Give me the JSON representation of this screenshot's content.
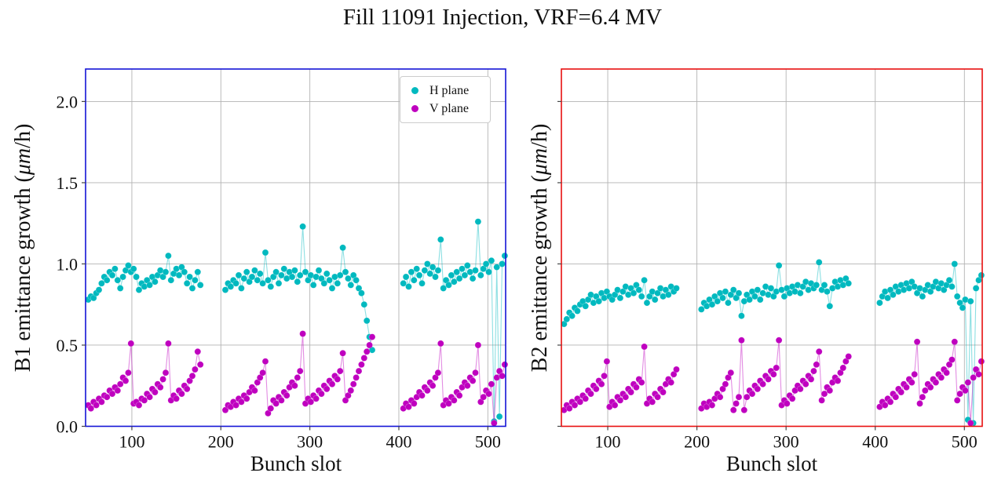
{
  "title": "Fill 11091 Injection, VRF=6.4 MV",
  "colors": {
    "h_plane": "#00b9bf",
    "v_plane": "#bf00bf",
    "b1_frame": "#1414d6",
    "b2_frame": "#e80f0f",
    "grid": "#b3b3b3",
    "tick": "#444444"
  },
  "legend": {
    "position": "upper right",
    "items": [
      {
        "label": "H plane",
        "color": "#00b9bf"
      },
      {
        "label": "V plane",
        "color": "#bf00bf"
      }
    ]
  },
  "chart_data": [
    {
      "type": "scatter",
      "plot_id": "b1",
      "ylabel_pre": "B1 emittance growth (",
      "ylabel_mu": "μm",
      "ylabel_post": "/h)",
      "xlabel": "Bunch slot",
      "xlim": [
        48,
        520
      ],
      "ylim": [
        0,
        2.2
      ],
      "grid": true,
      "frame_color": "#1414d6",
      "xticks": [
        100,
        200,
        300,
        400,
        500
      ],
      "xtick_labels": [
        "100",
        "200",
        "300",
        "400",
        "500"
      ],
      "yticks": [
        0.0,
        0.5,
        1.0,
        1.5,
        2.0
      ],
      "ytick_labels": [
        "0.0",
        "0.5",
        "1.0",
        "1.5",
        "2.0"
      ],
      "show_ytick_labels": true,
      "series": [
        {
          "name": "H plane",
          "color": "#00b9bf",
          "trains": [
            {
              "x0": 51,
              "dx": 3,
              "y": [
                0.78,
                0.8,
                0.79,
                0.82,
                0.84,
                0.88,
                0.92,
                0.9,
                0.95,
                0.93,
                0.97,
                0.9,
                0.85,
                0.92,
                0.96,
                0.99,
                0.95,
                0.97,
                0.92,
                0.84,
                0.88,
                0.86,
                0.9,
                0.87,
                0.92,
                0.89,
                0.93,
                0.96,
                0.92,
                0.95,
                1.05,
                0.9,
                0.94,
                0.97,
                0.93,
                0.98,
                0.95,
                0.88,
                0.92,
                0.85,
                0.9,
                0.95,
                0.87
              ]
            },
            {
              "x0": 205,
              "dx": 3,
              "y": [
                0.84,
                0.88,
                0.86,
                0.9,
                0.88,
                0.93,
                0.85,
                0.91,
                0.95,
                0.89,
                0.92,
                0.96,
                0.9,
                0.94,
                0.88,
                1.07,
                0.9,
                0.86,
                0.92,
                0.95,
                0.88,
                0.93,
                0.97,
                0.91,
                0.95,
                0.92,
                0.96,
                0.89,
                0.93,
                1.23,
                0.95,
                0.9,
                0.93,
                0.87,
                0.92,
                0.96,
                0.91,
                0.88,
                0.94,
                0.9,
                0.85,
                0.92,
                0.88,
                0.93,
                1.1,
                0.95,
                0.91,
                0.87,
                0.93,
                0.9,
                0.85,
                0.82,
                0.75,
                0.65,
                0.55,
                0.47
              ]
            },
            {
              "x0": 405,
              "dx": 3,
              "y": [
                0.88,
                0.92,
                0.86,
                0.95,
                0.9,
                0.97,
                0.93,
                0.88,
                0.96,
                1.0,
                0.94,
                0.98,
                0.92,
                0.96,
                1.15,
                0.85,
                0.9,
                0.87,
                0.93,
                0.89,
                0.95,
                0.91,
                0.97,
                0.93,
                0.99,
                0.95,
                0.91,
                0.96,
                1.26,
                0.93,
                0.97,
                1.0,
                0.95,
                1.02,
                0.03,
                0.98,
                0.06,
                1.0,
                1.05
              ]
            }
          ]
        },
        {
          "name": "V plane",
          "color": "#bf00bf",
          "trains": [
            {
              "x0": 51,
              "dx": 3,
              "y": [
                0.13,
                0.11,
                0.15,
                0.13,
                0.17,
                0.15,
                0.19,
                0.18,
                0.22,
                0.2,
                0.24,
                0.22,
                0.26,
                0.3,
                0.28,
                0.33,
                0.51,
                0.14,
                0.15,
                0.13,
                0.17,
                0.16,
                0.2,
                0.18,
                0.23,
                0.21,
                0.26,
                0.24,
                0.29,
                0.33,
                0.51,
                0.16,
                0.19,
                0.17,
                0.22,
                0.2,
                0.25,
                0.23,
                0.28,
                0.31,
                0.35,
                0.46,
                0.38
              ]
            },
            {
              "x0": 205,
              "dx": 3,
              "y": [
                0.1,
                0.13,
                0.12,
                0.15,
                0.13,
                0.17,
                0.15,
                0.19,
                0.17,
                0.21,
                0.24,
                0.22,
                0.27,
                0.3,
                0.33,
                0.4,
                0.08,
                0.11,
                0.16,
                0.14,
                0.18,
                0.16,
                0.21,
                0.19,
                0.24,
                0.27,
                0.25,
                0.3,
                0.34,
                0.57,
                0.14,
                0.17,
                0.15,
                0.19,
                0.17,
                0.22,
                0.2,
                0.25,
                0.23,
                0.28,
                0.26,
                0.31,
                0.29,
                0.34,
                0.45,
                0.16,
                0.19,
                0.22,
                0.26,
                0.3,
                0.34,
                0.38,
                0.42,
                0.46,
                0.5,
                0.55
              ]
            },
            {
              "x0": 405,
              "dx": 3,
              "y": [
                0.11,
                0.14,
                0.12,
                0.16,
                0.14,
                0.18,
                0.21,
                0.19,
                0.24,
                0.22,
                0.27,
                0.25,
                0.3,
                0.33,
                0.51,
                0.13,
                0.16,
                0.14,
                0.18,
                0.16,
                0.21,
                0.19,
                0.24,
                0.27,
                0.25,
                0.3,
                0.28,
                0.33,
                0.5,
                0.15,
                0.18,
                0.22,
                0.2,
                0.26,
                0.02,
                0.3,
                0.34,
                0.31,
                0.38
              ]
            }
          ]
        }
      ]
    },
    {
      "type": "scatter",
      "plot_id": "b2",
      "ylabel_pre": "B2 emittance growth (",
      "ylabel_mu": "μm",
      "ylabel_post": "/h)",
      "xlabel": "Bunch slot",
      "xlim": [
        48,
        520
      ],
      "ylim": [
        0,
        2.2
      ],
      "grid": true,
      "frame_color": "#e80f0f",
      "xticks": [
        100,
        200,
        300,
        400,
        500
      ],
      "xtick_labels": [
        "100",
        "200",
        "300",
        "400",
        "500"
      ],
      "yticks": [
        0.0,
        0.5,
        1.0,
        1.5,
        2.0
      ],
      "ytick_labels": [
        "0.0",
        "0.5",
        "1.0",
        "1.5",
        "2.0"
      ],
      "show_ytick_labels": false,
      "series": [
        {
          "name": "H plane",
          "color": "#00b9bf",
          "trains": [
            {
              "x0": 51,
              "dx": 3,
              "y": [
                0.63,
                0.66,
                0.7,
                0.68,
                0.73,
                0.71,
                0.75,
                0.77,
                0.74,
                0.78,
                0.81,
                0.76,
                0.8,
                0.77,
                0.82,
                0.79,
                0.83,
                0.8,
                0.78,
                0.81,
                0.84,
                0.79,
                0.83,
                0.86,
                0.81,
                0.85,
                0.82,
                0.87,
                0.84,
                0.8,
                0.9,
                0.76,
                0.8,
                0.83,
                0.78,
                0.82,
                0.85,
                0.8,
                0.84,
                0.81,
                0.86,
                0.83,
                0.85
              ]
            },
            {
              "x0": 205,
              "dx": 3,
              "y": [
                0.72,
                0.76,
                0.74,
                0.78,
                0.75,
                0.8,
                0.77,
                0.82,
                0.79,
                0.83,
                0.76,
                0.81,
                0.84,
                0.79,
                0.82,
                0.68,
                0.77,
                0.81,
                0.78,
                0.83,
                0.8,
                0.84,
                0.78,
                0.82,
                0.86,
                0.81,
                0.85,
                0.8,
                0.83,
                0.99,
                0.84,
                0.8,
                0.85,
                0.82,
                0.86,
                0.83,
                0.87,
                0.82,
                0.86,
                0.89,
                0.84,
                0.88,
                0.85,
                0.87,
                1.01,
                0.84,
                0.87,
                0.83,
                0.74,
                0.85,
                0.89,
                0.86,
                0.9,
                0.87,
                0.91,
                0.88
              ]
            },
            {
              "x0": 405,
              "dx": 3,
              "y": [
                0.76,
                0.8,
                0.83,
                0.79,
                0.84,
                0.81,
                0.86,
                0.83,
                0.87,
                0.84,
                0.88,
                0.85,
                0.89,
                0.86,
                0.82,
                0.85,
                0.8,
                0.84,
                0.87,
                0.83,
                0.86,
                0.89,
                0.85,
                0.88,
                0.84,
                0.87,
                0.9,
                0.86,
                1.0,
                0.8,
                0.76,
                0.73,
                0.78,
                0.04,
                0.77,
                0.02,
                0.85,
                0.9,
                0.93
              ]
            }
          ]
        },
        {
          "name": "V plane",
          "color": "#bf00bf",
          "trains": [
            {
              "x0": 51,
              "dx": 3,
              "y": [
                0.1,
                0.13,
                0.11,
                0.15,
                0.13,
                0.17,
                0.15,
                0.19,
                0.17,
                0.22,
                0.2,
                0.25,
                0.23,
                0.28,
                0.26,
                0.31,
                0.4,
                0.12,
                0.15,
                0.13,
                0.18,
                0.16,
                0.2,
                0.18,
                0.23,
                0.21,
                0.26,
                0.24,
                0.29,
                0.27,
                0.49,
                0.14,
                0.17,
                0.15,
                0.2,
                0.18,
                0.23,
                0.21,
                0.26,
                0.29,
                0.27,
                0.32,
                0.35
              ]
            },
            {
              "x0": 205,
              "dx": 3,
              "y": [
                0.11,
                0.14,
                0.12,
                0.15,
                0.13,
                0.17,
                0.2,
                0.18,
                0.23,
                0.26,
                0.3,
                0.33,
                0.1,
                0.14,
                0.18,
                0.53,
                0.1,
                0.18,
                0.22,
                0.2,
                0.25,
                0.23,
                0.28,
                0.26,
                0.31,
                0.29,
                0.34,
                0.32,
                0.36,
                0.53,
                0.13,
                0.16,
                0.14,
                0.19,
                0.17,
                0.22,
                0.25,
                0.23,
                0.28,
                0.26,
                0.31,
                0.29,
                0.34,
                0.38,
                0.46,
                0.16,
                0.2,
                0.24,
                0.22,
                0.27,
                0.3,
                0.28,
                0.33,
                0.36,
                0.4,
                0.43
              ]
            },
            {
              "x0": 405,
              "dx": 3,
              "y": [
                0.12,
                0.15,
                0.13,
                0.17,
                0.15,
                0.2,
                0.18,
                0.23,
                0.21,
                0.26,
                0.24,
                0.29,
                0.27,
                0.32,
                0.52,
                0.14,
                0.18,
                0.22,
                0.26,
                0.24,
                0.29,
                0.27,
                0.32,
                0.3,
                0.35,
                0.33,
                0.38,
                0.41,
                0.52,
                0.16,
                0.2,
                0.24,
                0.22,
                0.27,
                0.02,
                0.3,
                0.35,
                0.32,
                0.4
              ]
            }
          ]
        }
      ]
    }
  ]
}
